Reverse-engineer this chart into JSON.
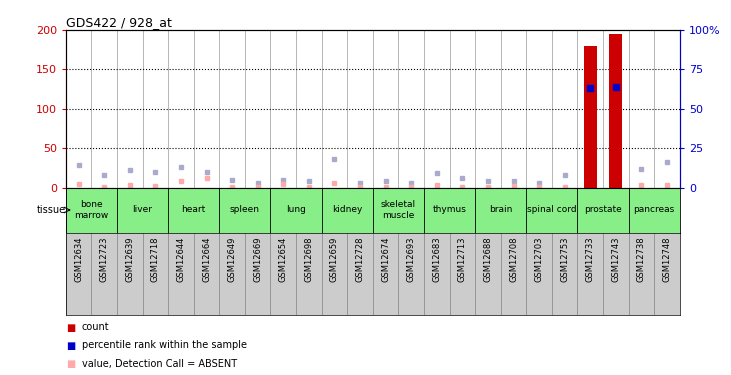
{
  "title": "GDS422 / 928_at",
  "samples": [
    "GSM12634",
    "GSM12723",
    "GSM12639",
    "GSM12718",
    "GSM12644",
    "GSM12664",
    "GSM12649",
    "GSM12669",
    "GSM12654",
    "GSM12698",
    "GSM12659",
    "GSM12728",
    "GSM12674",
    "GSM12693",
    "GSM12683",
    "GSM12713",
    "GSM12688",
    "GSM12708",
    "GSM12703",
    "GSM12753",
    "GSM12733",
    "GSM12743",
    "GSM12738",
    "GSM12748"
  ],
  "tissues": [
    {
      "name": "bone\nmarrow",
      "start": 0,
      "end": 2
    },
    {
      "name": "liver",
      "start": 2,
      "end": 4
    },
    {
      "name": "heart",
      "start": 4,
      "end": 6
    },
    {
      "name": "spleen",
      "start": 6,
      "end": 8
    },
    {
      "name": "lung",
      "start": 8,
      "end": 10
    },
    {
      "name": "kidney",
      "start": 10,
      "end": 12
    },
    {
      "name": "skeletal\nmuscle",
      "start": 12,
      "end": 14
    },
    {
      "name": "thymus",
      "start": 14,
      "end": 16
    },
    {
      "name": "brain",
      "start": 16,
      "end": 18
    },
    {
      "name": "spinal cord",
      "start": 18,
      "end": 20
    },
    {
      "name": "prostate",
      "start": 20,
      "end": 22
    },
    {
      "name": "pancreas",
      "start": 22,
      "end": 24
    }
  ],
  "count_values": [
    0,
    0,
    0,
    0,
    0,
    0,
    0,
    0,
    0,
    0,
    0,
    0,
    0,
    0,
    0,
    0,
    0,
    0,
    0,
    0,
    180,
    195,
    0,
    0
  ],
  "rank_values_pct": [
    0,
    0,
    0,
    0,
    0,
    0,
    0,
    0,
    0,
    0,
    0,
    0,
    0,
    0,
    0,
    0,
    0,
    0,
    0,
    0,
    63,
    64,
    0,
    0
  ],
  "absent_value": [
    5,
    1,
    3,
    2,
    8,
    12,
    1,
    1,
    5,
    1,
    6,
    1,
    1,
    1,
    3,
    1,
    1,
    2,
    1,
    1,
    1,
    1,
    3,
    3
  ],
  "absent_rank_pct": [
    14,
    8,
    11,
    10,
    13,
    10,
    5,
    3,
    5,
    4,
    18,
    3,
    4,
    3,
    9,
    6,
    4,
    4,
    3,
    8,
    3,
    4,
    12,
    16
  ],
  "ylim_left": [
    0,
    200
  ],
  "ylim_right": [
    0,
    100
  ],
  "yticks_left": [
    0,
    50,
    100,
    150,
    200
  ],
  "yticks_right": [
    0,
    25,
    50,
    75,
    100
  ],
  "ytick_labels_right": [
    "0",
    "25",
    "50",
    "75",
    "100%"
  ],
  "bar_color": "#cc0000",
  "rank_color": "#0000cc",
  "absent_val_color": "#ffaaaa",
  "absent_rank_color": "#aaaacc",
  "tissue_bg_color": "#88ee88",
  "sample_bg_color": "#cccccc",
  "bg_color": "#ffffff",
  "tissue_label": "tissue",
  "grid_color": "#000000",
  "legend": [
    {
      "color": "#cc0000",
      "label": "count"
    },
    {
      "color": "#0000cc",
      "label": "percentile rank within the sample"
    },
    {
      "color": "#ffaaaa",
      "label": "value, Detection Call = ABSENT"
    },
    {
      "color": "#aaaacc",
      "label": "rank, Detection Call = ABSENT"
    }
  ]
}
